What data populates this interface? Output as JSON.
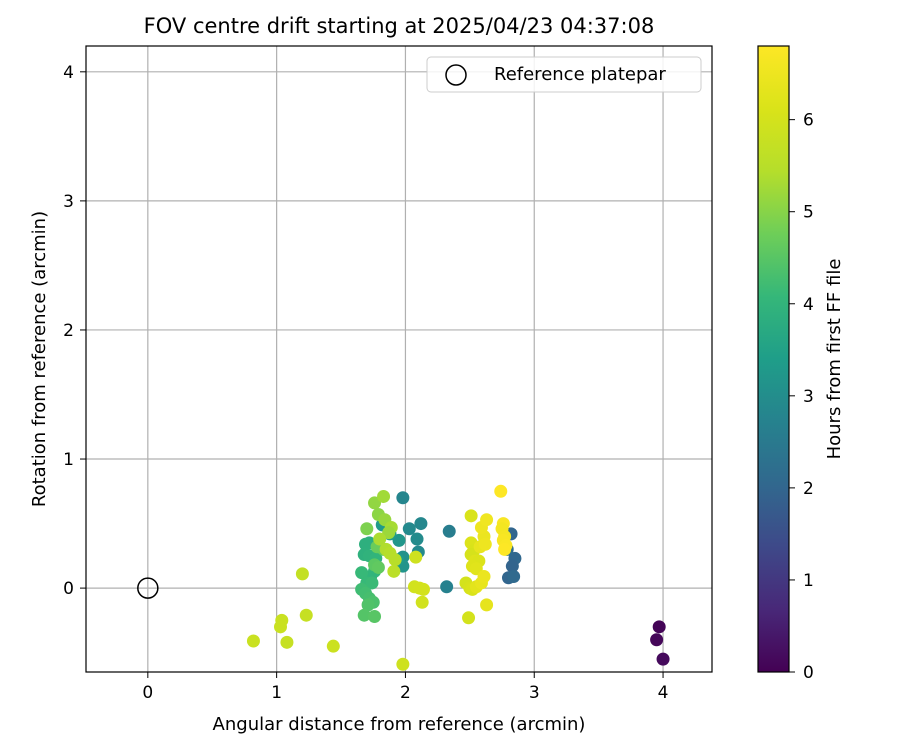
{
  "chart_data": {
    "type": "scatter",
    "title": "FOV centre drift starting at 2025/04/23 04:37:08",
    "xlabel": "Angular distance from reference (arcmin)",
    "ylabel": "Rotation from reference (arcmin)",
    "xlim": [
      -0.48,
      4.38
    ],
    "ylim": [
      -0.65,
      4.2
    ],
    "xticks": [
      0,
      1,
      2,
      3,
      4
    ],
    "yticks": [
      0,
      1,
      2,
      3,
      4
    ],
    "grid": true,
    "legend": {
      "placement": "top-right",
      "entries": [
        "Reference platepar"
      ]
    },
    "reference_point": {
      "x": 0,
      "y": 0,
      "label": "Reference platepar"
    },
    "colorbar": {
      "label": "Hours from first FF file",
      "range": [
        0,
        6.8
      ],
      "ticks": [
        0,
        1,
        2,
        3,
        4,
        5,
        6
      ],
      "colormap": "viridis"
    },
    "points": [
      {
        "x": 3.97,
        "y": -0.3,
        "c": 0.05
      },
      {
        "x": 3.95,
        "y": -0.4,
        "c": 0.1
      },
      {
        "x": 4.0,
        "y": -0.55,
        "c": 0.15
      },
      {
        "x": 2.82,
        "y": 0.42,
        "c": 2.0
      },
      {
        "x": 2.85,
        "y": 0.23,
        "c": 2.05
      },
      {
        "x": 2.83,
        "y": 0.17,
        "c": 1.95
      },
      {
        "x": 2.8,
        "y": 0.08,
        "c": 2.0
      },
      {
        "x": 2.84,
        "y": 0.09,
        "c": 2.1
      },
      {
        "x": 2.79,
        "y": 0.3,
        "c": 2.15
      },
      {
        "x": 2.34,
        "y": 0.44,
        "c": 2.6
      },
      {
        "x": 2.32,
        "y": 0.01,
        "c": 2.7
      },
      {
        "x": 1.98,
        "y": 0.7,
        "c": 2.8
      },
      {
        "x": 2.12,
        "y": 0.5,
        "c": 2.85
      },
      {
        "x": 2.03,
        "y": 0.46,
        "c": 2.9
      },
      {
        "x": 2.09,
        "y": 0.38,
        "c": 2.95
      },
      {
        "x": 2.1,
        "y": 0.28,
        "c": 2.9
      },
      {
        "x": 1.95,
        "y": 0.37,
        "c": 3.2
      },
      {
        "x": 1.98,
        "y": 0.24,
        "c": 3.1
      },
      {
        "x": 1.98,
        "y": 0.17,
        "c": 3.15
      },
      {
        "x": 1.94,
        "y": 0.22,
        "c": 3.3
      },
      {
        "x": 1.82,
        "y": 0.49,
        "c": 3.3
      },
      {
        "x": 1.88,
        "y": 0.42,
        "c": 3.35
      },
      {
        "x": 1.72,
        "y": 0.35,
        "c": 3.8
      },
      {
        "x": 1.69,
        "y": 0.34,
        "c": 3.85
      },
      {
        "x": 1.68,
        "y": 0.26,
        "c": 3.9
      },
      {
        "x": 1.72,
        "y": 0.25,
        "c": 3.95
      },
      {
        "x": 1.77,
        "y": 0.23,
        "c": 4.0
      },
      {
        "x": 1.76,
        "y": 0.13,
        "c": 4.05
      },
      {
        "x": 1.73,
        "y": 0.09,
        "c": 4.0
      },
      {
        "x": 1.66,
        "y": 0.12,
        "c": 4.1
      },
      {
        "x": 1.7,
        "y": 0.04,
        "c": 4.1
      },
      {
        "x": 1.74,
        "y": 0.04,
        "c": 4.15
      },
      {
        "x": 1.66,
        "y": -0.01,
        "c": 4.2
      },
      {
        "x": 1.69,
        "y": -0.04,
        "c": 4.25
      },
      {
        "x": 1.72,
        "y": -0.08,
        "c": 4.3
      },
      {
        "x": 1.75,
        "y": -0.11,
        "c": 4.35
      },
      {
        "x": 1.71,
        "y": -0.13,
        "c": 4.4
      },
      {
        "x": 1.68,
        "y": -0.21,
        "c": 4.45
      },
      {
        "x": 1.76,
        "y": -0.22,
        "c": 4.5
      },
      {
        "x": 1.76,
        "y": 0.18,
        "c": 4.55
      },
      {
        "x": 1.79,
        "y": 0.16,
        "c": 4.6
      },
      {
        "x": 1.83,
        "y": 0.3,
        "c": 4.65
      },
      {
        "x": 1.78,
        "y": 0.32,
        "c": 4.7
      },
      {
        "x": 1.7,
        "y": 0.46,
        "c": 4.9
      },
      {
        "x": 1.76,
        "y": 0.66,
        "c": 5.1
      },
      {
        "x": 1.83,
        "y": 0.71,
        "c": 5.25
      },
      {
        "x": 1.79,
        "y": 0.57,
        "c": 5.05
      },
      {
        "x": 1.84,
        "y": 0.53,
        "c": 5.15
      },
      {
        "x": 1.89,
        "y": 0.47,
        "c": 5.3
      },
      {
        "x": 1.87,
        "y": 0.43,
        "c": 5.2
      },
      {
        "x": 1.8,
        "y": 0.38,
        "c": 5.35
      },
      {
        "x": 1.85,
        "y": 0.3,
        "c": 5.4
      },
      {
        "x": 1.88,
        "y": 0.27,
        "c": 5.45
      },
      {
        "x": 1.92,
        "y": 0.22,
        "c": 5.5
      },
      {
        "x": 1.91,
        "y": 0.13,
        "c": 5.55
      },
      {
        "x": 1.2,
        "y": 0.11,
        "c": 5.7
      },
      {
        "x": 1.04,
        "y": -0.25,
        "c": 5.8
      },
      {
        "x": 1.03,
        "y": -0.3,
        "c": 5.8
      },
      {
        "x": 1.23,
        "y": -0.21,
        "c": 5.75
      },
      {
        "x": 1.08,
        "y": -0.42,
        "c": 5.75
      },
      {
        "x": 0.82,
        "y": -0.41,
        "c": 5.8
      },
      {
        "x": 1.44,
        "y": -0.45,
        "c": 5.85
      },
      {
        "x": 1.98,
        "y": -0.59,
        "c": 5.9
      },
      {
        "x": 2.08,
        "y": 0.24,
        "c": 5.9
      },
      {
        "x": 2.07,
        "y": 0.01,
        "c": 5.95
      },
      {
        "x": 2.11,
        "y": 0.0,
        "c": 6.0
      },
      {
        "x": 2.14,
        "y": -0.01,
        "c": 6.0
      },
      {
        "x": 2.13,
        "y": -0.11,
        "c": 5.95
      },
      {
        "x": 2.51,
        "y": 0.56,
        "c": 6.1
      },
      {
        "x": 2.51,
        "y": 0.35,
        "c": 6.15
      },
      {
        "x": 2.53,
        "y": 0.29,
        "c": 6.1
      },
      {
        "x": 2.51,
        "y": 0.26,
        "c": 6.05
      },
      {
        "x": 2.54,
        "y": 0.21,
        "c": 6.2
      },
      {
        "x": 2.57,
        "y": 0.21,
        "c": 6.15
      },
      {
        "x": 2.52,
        "y": 0.17,
        "c": 6.2
      },
      {
        "x": 2.55,
        "y": 0.15,
        "c": 6.25
      },
      {
        "x": 2.47,
        "y": 0.04,
        "c": 6.0
      },
      {
        "x": 2.5,
        "y": 0.0,
        "c": 6.05
      },
      {
        "x": 2.52,
        "y": -0.01,
        "c": 6.1
      },
      {
        "x": 2.55,
        "y": 0.01,
        "c": 6.3
      },
      {
        "x": 2.49,
        "y": -0.23,
        "c": 6.0
      },
      {
        "x": 2.63,
        "y": -0.13,
        "c": 6.35
      },
      {
        "x": 2.59,
        "y": 0.04,
        "c": 6.4
      },
      {
        "x": 2.61,
        "y": 0.09,
        "c": 6.45
      },
      {
        "x": 2.58,
        "y": 0.32,
        "c": 6.4
      },
      {
        "x": 2.61,
        "y": 0.4,
        "c": 6.45
      },
      {
        "x": 2.59,
        "y": 0.47,
        "c": 6.5
      },
      {
        "x": 2.63,
        "y": 0.53,
        "c": 6.55
      },
      {
        "x": 2.62,
        "y": 0.34,
        "c": 6.5
      },
      {
        "x": 2.74,
        "y": 0.75,
        "c": 6.8
      },
      {
        "x": 2.76,
        "y": 0.5,
        "c": 6.7
      },
      {
        "x": 2.75,
        "y": 0.46,
        "c": 6.6
      },
      {
        "x": 2.77,
        "y": 0.4,
        "c": 6.65
      },
      {
        "x": 2.76,
        "y": 0.37,
        "c": 6.7
      },
      {
        "x": 2.78,
        "y": 0.33,
        "c": 6.75
      },
      {
        "x": 2.77,
        "y": 0.3,
        "c": 6.8
      }
    ]
  }
}
